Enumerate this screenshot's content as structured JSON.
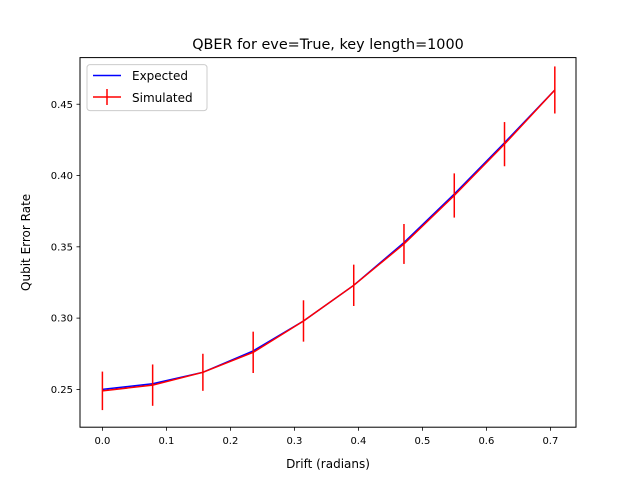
{
  "chart_data": {
    "type": "line",
    "title": "QBER for eve=True, key length=1000",
    "xlabel": "Drift (radians)",
    "ylabel": "Qubit Error Rate",
    "xlim": [
      -0.035,
      0.74
    ],
    "ylim": [
      0.2235,
      0.4827
    ],
    "xticks": [
      0.0,
      0.1,
      0.2,
      0.3,
      0.4,
      0.5,
      0.6,
      0.7
    ],
    "xtick_labels": [
      "0.0",
      "0.1",
      "0.2",
      "0.3",
      "0.4",
      "0.5",
      "0.6",
      "0.7"
    ],
    "yticks": [
      0.25,
      0.3,
      0.35,
      0.4,
      0.45
    ],
    "ytick_labels": [
      "0.25",
      "0.30",
      "0.35",
      "0.40",
      "0.45"
    ],
    "grid": false,
    "legend": "upper-left",
    "x": [
      0.0,
      0.0785,
      0.157,
      0.2356,
      0.3142,
      0.3927,
      0.4712,
      0.5498,
      0.6283,
      0.7069
    ],
    "series": [
      {
        "name": "Expected",
        "color": "#0000ff",
        "style": "line",
        "values": [
          0.25,
          0.254,
          0.262,
          0.277,
          0.298,
          0.323,
          0.353,
          0.387,
          0.423,
          0.46
        ]
      },
      {
        "name": "Simulated",
        "color": "#ff0000",
        "style": "errorbar",
        "values": [
          0.249,
          0.253,
          0.262,
          0.276,
          0.298,
          0.323,
          0.352,
          0.386,
          0.422,
          0.46
        ],
        "errors": [
          0.0135,
          0.0145,
          0.013,
          0.0145,
          0.0145,
          0.0145,
          0.014,
          0.0155,
          0.0155,
          0.0165
        ]
      }
    ]
  }
}
